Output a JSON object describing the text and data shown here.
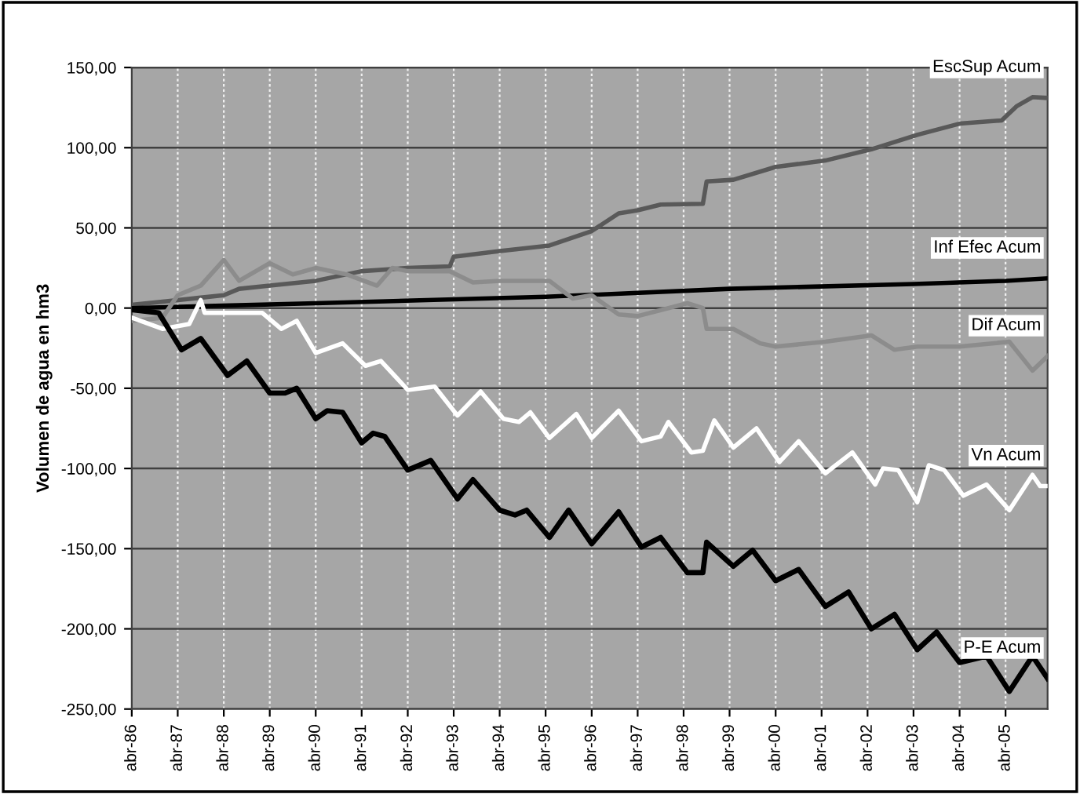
{
  "chart_data": {
    "type": "line",
    "ylabel": "Volumen de agua en hm3",
    "xlim": [
      "1986-04",
      "2006-03"
    ],
    "xticks": [
      {
        "value": "1986-04",
        "label": "abr-86"
      },
      {
        "value": "1987-04",
        "label": "abr-87"
      },
      {
        "value": "1988-04",
        "label": "abr-88"
      },
      {
        "value": "1989-04",
        "label": "abr-89"
      },
      {
        "value": "1990-04",
        "label": "abr-90"
      },
      {
        "value": "1991-04",
        "label": "abr-91"
      },
      {
        "value": "1992-04",
        "label": "abr-92"
      },
      {
        "value": "1993-04",
        "label": "abr-93"
      },
      {
        "value": "1994-04",
        "label": "abr-94"
      },
      {
        "value": "1995-04",
        "label": "abr-95"
      },
      {
        "value": "1996-04",
        "label": "abr-96"
      },
      {
        "value": "1997-04",
        "label": "abr-97"
      },
      {
        "value": "1998-04",
        "label": "abr-98"
      },
      {
        "value": "1999-04",
        "label": "abr-99"
      },
      {
        "value": "2000-04",
        "label": "abr-00"
      },
      {
        "value": "2001-04",
        "label": "abr-01"
      },
      {
        "value": "2002-04",
        "label": "abr-02"
      },
      {
        "value": "2003-04",
        "label": "abr-03"
      },
      {
        "value": "2004-04",
        "label": "abr-04"
      },
      {
        "value": "2005-04",
        "label": "abr-05"
      }
    ],
    "ylim": [
      -250,
      150
    ],
    "yticks": [
      {
        "value": -250,
        "label": "-250,00"
      },
      {
        "value": -200,
        "label": "-200,00"
      },
      {
        "value": -150,
        "label": "-150,00"
      },
      {
        "value": -100,
        "label": "-100,00"
      },
      {
        "value": -50,
        "label": "-50,00"
      },
      {
        "value": 0,
        "label": "0,00"
      },
      {
        "value": 50,
        "label": "50,00"
      },
      {
        "value": 100,
        "label": "100,00"
      },
      {
        "value": 150,
        "label": "150,00"
      }
    ],
    "grid": true,
    "series": [
      {
        "name": "EscSup Acum",
        "color": "#595959",
        "x": [
          "1986-04",
          "1987-04",
          "1987-10",
          "1988-04",
          "1988-08",
          "1989-04",
          "1990-04",
          "1991-04",
          "1992-04",
          "1993-03",
          "1993-04",
          "1994-04",
          "1995-05",
          "1996-04",
          "1996-11",
          "1997-04",
          "1997-10",
          "1998-09",
          "1998-10",
          "1999-05",
          "2000-04",
          "2001-05",
          "2002-05",
          "2003-05",
          "2004-04",
          "2005-03",
          "2005-07",
          "2005-11",
          "2006-03"
        ],
        "values": [
          2,
          5,
          6.5,
          8,
          12,
          14,
          17,
          23,
          25,
          26,
          32,
          35.5,
          39,
          48,
          59,
          61,
          64.5,
          65,
          79,
          80,
          88,
          92,
          99,
          108,
          115,
          117,
          126,
          131.5,
          131
        ]
      },
      {
        "name": "Inf Efec Acum",
        "color": "#000000",
        "x": [
          "1986-04",
          "1990-04",
          "1995-04",
          "1999-04",
          "2003-04",
          "2005-04",
          "2006-03"
        ],
        "values": [
          0,
          3,
          7,
          12,
          15,
          17,
          18.5
        ]
      },
      {
        "name": "Dif Acum",
        "color": "#8c8c8c",
        "x": [
          "1986-04",
          "1986-12",
          "1987-04",
          "1987-10",
          "1988-04",
          "1988-08",
          "1989-04",
          "1989-10",
          "1990-04",
          "1990-12",
          "1991-08",
          "1991-12",
          "1992-04",
          "1993-03",
          "1993-09",
          "1994-04",
          "1995-05",
          "1995-11",
          "1996-04",
          "1996-11",
          "1997-04",
          "1998-05",
          "1998-09",
          "1998-10",
          "1999-05",
          "1999-12",
          "2000-04",
          "2001-05",
          "2002-05",
          "2002-11",
          "2003-05",
          "2004-04",
          "2005-05",
          "2005-11",
          "2006-03"
        ],
        "values": [
          -8,
          -6,
          8,
          14,
          30,
          17,
          28,
          21,
          25,
          21,
          14,
          25,
          23,
          23,
          16,
          17,
          17,
          6,
          8,
          -4,
          -5,
          3,
          0,
          -13,
          -13,
          -22,
          -24,
          -21,
          -17,
          -26,
          -24,
          -24,
          -21,
          -39,
          -30
        ]
      },
      {
        "name": "Vn Acum",
        "color": "#ffffff",
        "x": [
          "1986-04",
          "1986-12",
          "1987-07",
          "1987-10",
          "1987-11",
          "1989-02",
          "1989-07",
          "1989-11",
          "1990-04",
          "1990-11",
          "1991-05",
          "1991-09",
          "1992-04",
          "1992-11",
          "1993-05",
          "1993-11",
          "1994-05",
          "1994-09",
          "1994-12",
          "1995-05",
          "1995-12",
          "1996-04",
          "1996-11",
          "1997-05",
          "1997-10",
          "1997-12",
          "1998-06",
          "1998-09",
          "1998-12",
          "1999-05",
          "1999-11",
          "2000-05",
          "2000-10",
          "2001-05",
          "2001-12",
          "2002-06",
          "2002-08",
          "2002-12",
          "2003-05",
          "2003-08",
          "2003-12",
          "2004-05",
          "2004-11",
          "2005-05",
          "2005-11",
          "2006-01",
          "2006-03"
        ],
        "values": [
          -6,
          -13,
          -10,
          5,
          -3,
          -3,
          -13,
          -8,
          -28,
          -22,
          -36,
          -33,
          -51,
          -49,
          -67,
          -52,
          -69,
          -71,
          -65,
          -81,
          -66,
          -81,
          -64,
          -83,
          -80,
          -71,
          -90,
          -89,
          -70,
          -87,
          -75,
          -96,
          -83,
          -103,
          -90,
          -110,
          -100,
          -101,
          -121,
          -98,
          -101,
          -117,
          -110,
          -126,
          -104,
          -111,
          -111
        ]
      },
      {
        "name": "P-E Acum",
        "color": "#000000",
        "x": [
          "1986-04",
          "1986-11",
          "1987-05",
          "1987-10",
          "1988-05",
          "1988-10",
          "1989-04",
          "1989-08",
          "1989-11",
          "1990-04",
          "1990-07",
          "1990-11",
          "1991-04",
          "1991-07",
          "1991-10",
          "1992-04",
          "1992-10",
          "1993-05",
          "1993-09",
          "1994-04",
          "1994-08",
          "1994-11",
          "1995-05",
          "1995-10",
          "1996-04",
          "1996-11",
          "1997-05",
          "1997-10",
          "1998-05",
          "1998-09",
          "1998-10",
          "1999-05",
          "1999-10",
          "2000-04",
          "2000-10",
          "2001-05",
          "2001-11",
          "2002-05",
          "2002-11",
          "2003-05",
          "2003-10",
          "2004-04",
          "2004-11",
          "2005-05",
          "2005-11",
          "2006-03"
        ],
        "values": [
          -1,
          -3,
          -26,
          -19,
          -42,
          -33,
          -53,
          -53,
          -50,
          -69,
          -64,
          -65,
          -84,
          -78,
          -80,
          -101,
          -95,
          -119,
          -107,
          -126,
          -129,
          -126,
          -143,
          -126,
          -147,
          -127,
          -149,
          -143,
          -165,
          -165,
          -146,
          -161,
          -151,
          -170,
          -163,
          -186,
          -177,
          -200,
          -191,
          -213,
          -202,
          -221,
          -217,
          -239,
          -217,
          -231
        ]
      }
    ]
  }
}
